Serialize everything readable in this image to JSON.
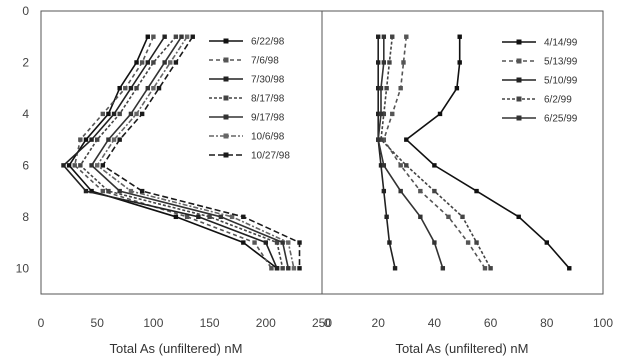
{
  "chart_data": [
    {
      "type": "line",
      "xlabel": "Total As (unfiltered) nM",
      "ylabel": "",
      "xlim": [
        0,
        250
      ],
      "ylim": [
        0,
        11
      ],
      "y_inverted": true,
      "x_ticks": [
        "0",
        "50",
        "100",
        "150",
        "200",
        "250"
      ],
      "y_ticks": [
        "0",
        "2",
        "4",
        "6",
        "8",
        "10"
      ],
      "legend_position": "top-right",
      "colors": [
        "#111111",
        "#555555",
        "#222222",
        "#444444",
        "#333333",
        "#666666",
        "#1a1a1a"
      ],
      "series": [
        {
          "name": "6/22/98",
          "values": [
            [
              95,
              1
            ],
            [
              85,
              2
            ],
            [
              70,
              3
            ],
            [
              60,
              4
            ],
            [
              40,
              5
            ],
            [
              25,
              6
            ],
            [
              45,
              7
            ],
            [
              120,
              8
            ],
            [
              180,
              9
            ],
            [
              210,
              10
            ]
          ]
        },
        {
          "name": "7/6/98",
          "values": [
            [
              100,
              1
            ],
            [
              90,
              2
            ],
            [
              75,
              3
            ],
            [
              55,
              4
            ],
            [
              35,
              5
            ],
            [
              30,
              6
            ],
            [
              55,
              7
            ],
            [
              130,
              8
            ],
            [
              190,
              9
            ],
            [
              205,
              10
            ]
          ]
        },
        {
          "name": "7/30/98",
          "values": [
            [
              110,
              1
            ],
            [
              95,
              2
            ],
            [
              80,
              3
            ],
            [
              65,
              4
            ],
            [
              45,
              5
            ],
            [
              20,
              6
            ],
            [
              40,
              7
            ],
            [
              140,
              8
            ],
            [
              200,
              9
            ],
            [
              210,
              10
            ]
          ]
        },
        {
          "name": "8/17/98",
          "values": [
            [
              120,
              1
            ],
            [
              100,
              2
            ],
            [
              85,
              3
            ],
            [
              70,
              4
            ],
            [
              50,
              5
            ],
            [
              35,
              6
            ],
            [
              60,
              7
            ],
            [
              150,
              8
            ],
            [
              210,
              9
            ],
            [
              215,
              10
            ]
          ]
        },
        {
          "name": "9/17/98",
          "values": [
            [
              125,
              1
            ],
            [
              110,
              2
            ],
            [
              95,
              3
            ],
            [
              80,
              4
            ],
            [
              60,
              5
            ],
            [
              45,
              6
            ],
            [
              70,
              7
            ],
            [
              160,
              8
            ],
            [
              215,
              9
            ],
            [
              220,
              10
            ]
          ]
        },
        {
          "name": "10/6/98",
          "values": [
            [
              130,
              1
            ],
            [
              115,
              2
            ],
            [
              100,
              3
            ],
            [
              85,
              4
            ],
            [
              65,
              5
            ],
            [
              50,
              6
            ],
            [
              80,
              7
            ],
            [
              170,
              8
            ],
            [
              220,
              9
            ],
            [
              225,
              10
            ]
          ]
        },
        {
          "name": "10/27/98",
          "values": [
            [
              135,
              1
            ],
            [
              120,
              2
            ],
            [
              105,
              3
            ],
            [
              90,
              4
            ],
            [
              70,
              5
            ],
            [
              55,
              6
            ],
            [
              90,
              7
            ],
            [
              180,
              8
            ],
            [
              230,
              9
            ],
            [
              230,
              10
            ]
          ]
        }
      ]
    },
    {
      "type": "line",
      "xlabel": "Total As (unfiltered) nM",
      "ylabel": "",
      "xlim": [
        0,
        100
      ],
      "ylim": [
        0,
        11
      ],
      "y_inverted": true,
      "x_ticks": [
        "0",
        "20",
        "40",
        "60",
        "80",
        "100"
      ],
      "legend_position": "top-right",
      "colors": [
        "#111111",
        "#555555",
        "#222222",
        "#444444",
        "#333333"
      ],
      "series": [
        {
          "name": "4/14/99",
          "values": [
            [
              49,
              1
            ],
            [
              49,
              2
            ],
            [
              48,
              3
            ],
            [
              42,
              4
            ],
            [
              30,
              5
            ],
            [
              40,
              6
            ],
            [
              55,
              7
            ],
            [
              70,
              8
            ],
            [
              80,
              9
            ],
            [
              88,
              10
            ]
          ]
        },
        {
          "name": "5/13/99",
          "values": [
            [
              30,
              1
            ],
            [
              29,
              2
            ],
            [
              28,
              3
            ],
            [
              25,
              4
            ],
            [
              22,
              5
            ],
            [
              28,
              6
            ],
            [
              35,
              7
            ],
            [
              45,
              8
            ],
            [
              52,
              9
            ],
            [
              58,
              10
            ]
          ]
        },
        {
          "name": "5/10/99",
          "values": [
            [
              20,
              1
            ],
            [
              20,
              2
            ],
            [
              20,
              3
            ],
            [
              20,
              4
            ],
            [
              20,
              5
            ],
            [
              21,
              6
            ],
            [
              22,
              7
            ],
            [
              23,
              8
            ],
            [
              24,
              9
            ],
            [
              26,
              10
            ]
          ]
        },
        {
          "name": "6/2/99",
          "values": [
            [
              25,
              1
            ],
            [
              24,
              2
            ],
            [
              23,
              3
            ],
            [
              22,
              4
            ],
            [
              21,
              5
            ],
            [
              30,
              6
            ],
            [
              40,
              7
            ],
            [
              50,
              8
            ],
            [
              55,
              9
            ],
            [
              60,
              10
            ]
          ]
        },
        {
          "name": "6/25/99",
          "values": [
            [
              22,
              1
            ],
            [
              22,
              2
            ],
            [
              21,
              3
            ],
            [
              21,
              4
            ],
            [
              20,
              5
            ],
            [
              22,
              6
            ],
            [
              28,
              7
            ],
            [
              35,
              8
            ],
            [
              40,
              9
            ],
            [
              43,
              10
            ]
          ]
        }
      ]
    }
  ]
}
